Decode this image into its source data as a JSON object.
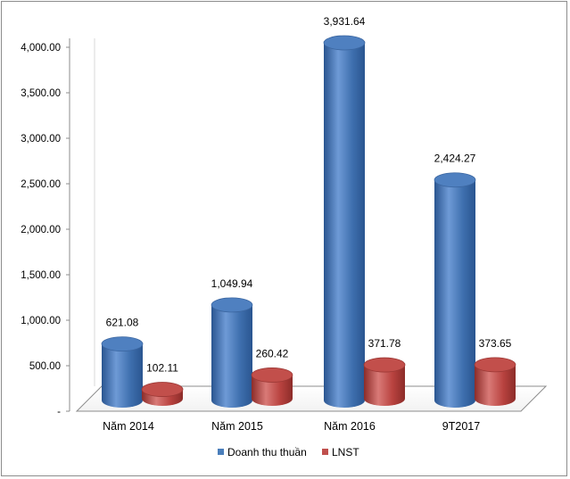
{
  "chart_data": {
    "type": "bar",
    "title": "",
    "xlabel": "",
    "ylabel": "",
    "categories": [
      "Năm 2014",
      "Năm 2015",
      "Năm 2016",
      "9T2017"
    ],
    "ylim": [
      0,
      4000
    ],
    "y_ticks": [
      "-",
      "500.00",
      "1,000.00",
      "1,500.00",
      "2,000.00",
      "2,500.00",
      "3,000.00",
      "3,500.00",
      "4,000.00"
    ],
    "series": [
      {
        "name": "Doanh thu thuần",
        "color": "#4a7ebb",
        "values": [
          621.08,
          1049.94,
          3931.64,
          2424.27
        ],
        "labels": [
          "621.08",
          "1,049.94",
          "3,931.64",
          "2,424.27"
        ]
      },
      {
        "name": "LNST",
        "color": "#c0504d",
        "values": [
          102.11,
          260.42,
          371.78,
          373.65
        ],
        "labels": [
          "102.11",
          "260.42",
          "371.78",
          "373.65"
        ]
      }
    ],
    "legend_position": "bottom",
    "grid": false,
    "style": "3d-cylinder"
  }
}
